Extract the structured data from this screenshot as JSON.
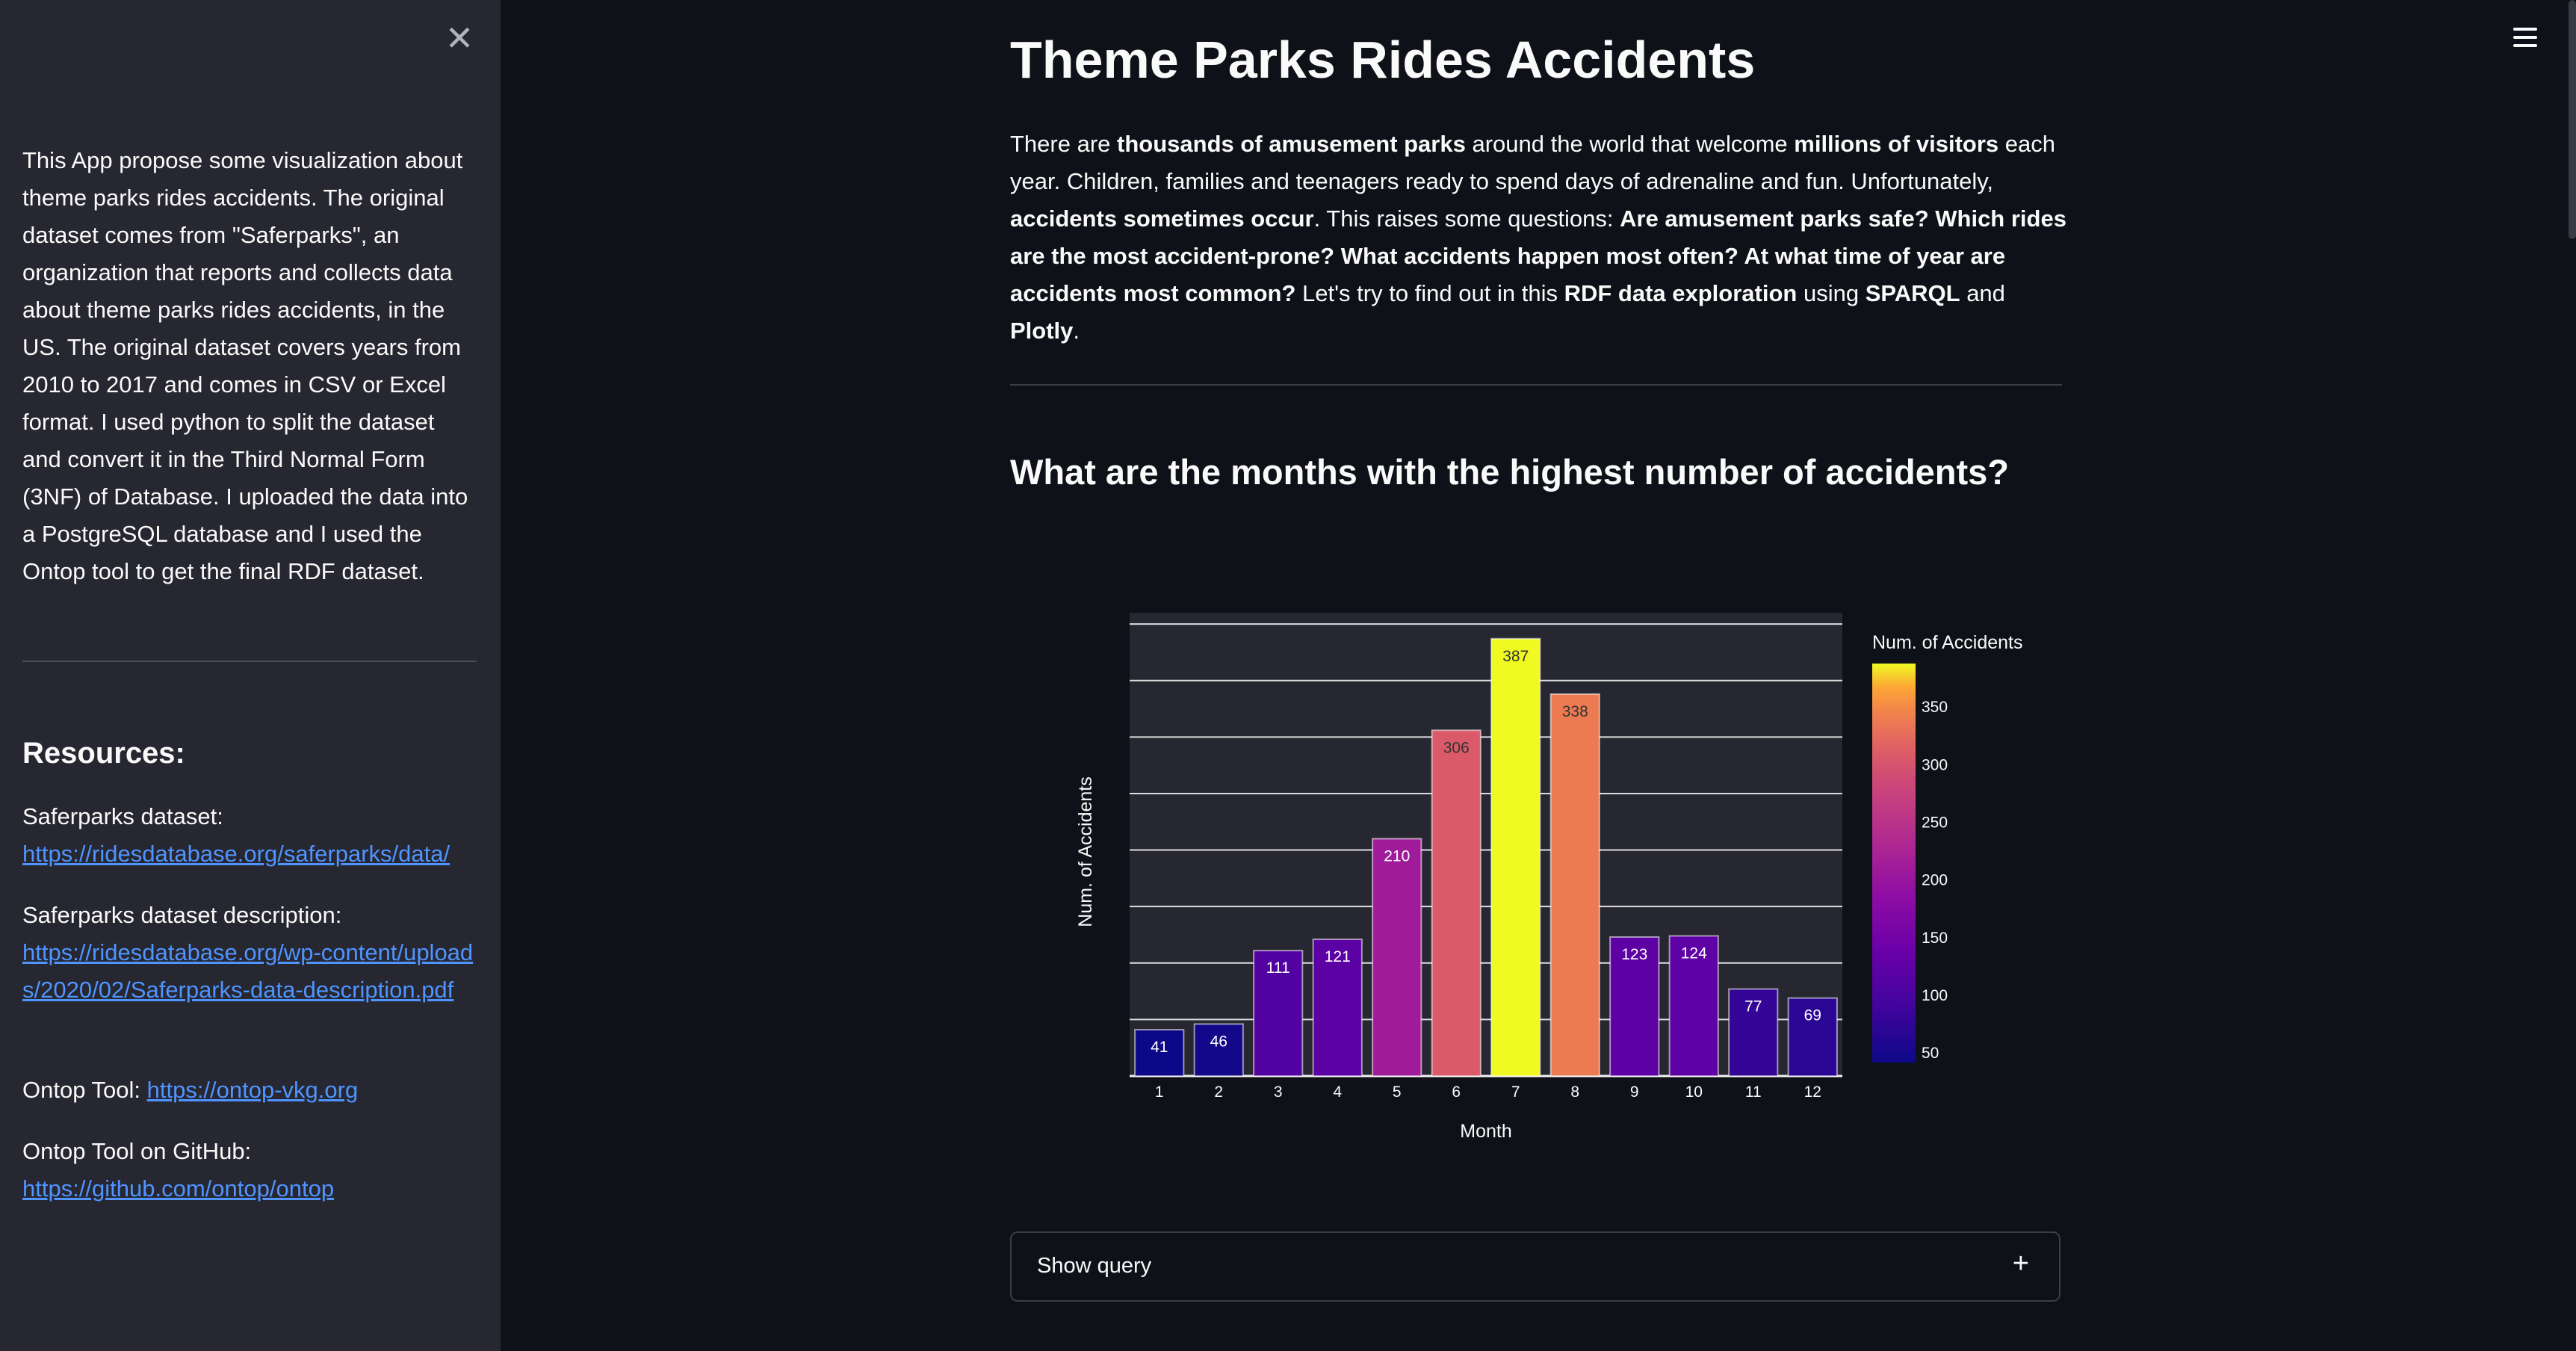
{
  "sidebar": {
    "close_glyph": "✕",
    "intro": "This App propose some visualization about theme parks rides accidents. The original dataset comes from \"Saferparks\", an organization that reports and collects data about theme parks rides accidents, in the US. The original dataset covers years from 2010 to 2017 and comes in CSV or Excel format. I used python to split the dataset and convert it in the Third Normal Form (3NF) of Database. I uploaded the data into a PostgreSQL database and I used the Ontop tool to get the final RDF dataset.",
    "resources_title": "Resources:",
    "resources": [
      {
        "label": "Saferparks dataset:",
        "link": "https://ridesdatabase.org/saferparks/data/"
      },
      {
        "label": "Saferparks dataset description:",
        "link": "https://ridesdatabase.org/wp-content/uploads/2020/02/Saferparks-data-description.pdf"
      },
      {
        "label": "Ontop Tool:",
        "link": "https://ontop-vkg.org"
      },
      {
        "label": "Ontop Tool on GitHub:",
        "link": "https://github.com/ontop/ontop"
      }
    ]
  },
  "main": {
    "title": "Theme Parks Rides Accidents",
    "intro": {
      "p1": "There are ",
      "b1": "thousands of amusement parks",
      "p2": " around the world that welcome ",
      "b2": "millions of visitors",
      "p3": " each year. Children, families and teenagers ready to spend days of adrenaline and fun. Unfortunately, ",
      "b3": "accidents sometimes occur",
      "p4": ". This raises some questions: ",
      "b4": "Are amusement parks safe? Which rides are the most accident-prone? What accidents happen most often? At what time of year are accidents most common?",
      "p5": " Let's try to find out in this ",
      "b5": "RDF data exploration",
      "p6": " using ",
      "b6": "SPARQL",
      "p7": " and ",
      "b7": "Plotly",
      "p8": "."
    },
    "subtitle": "What are the months with the highest number of accidents?",
    "expander_label": "Show query",
    "expander_icon": "+"
  },
  "chart_data": {
    "type": "bar",
    "categories": [
      "1",
      "2",
      "3",
      "4",
      "5",
      "6",
      "7",
      "8",
      "9",
      "10",
      "11",
      "12"
    ],
    "values": [
      41,
      46,
      111,
      121,
      210,
      306,
      387,
      338,
      123,
      124,
      77,
      69
    ],
    "xlabel": "Month",
    "ylabel": "Num. of Accidents",
    "ylim": [
      0,
      410
    ],
    "grid": true,
    "colorbar": {
      "title": "Num. of Accidents",
      "range": [
        41,
        387
      ],
      "ticks": [
        50,
        100,
        150,
        200,
        250,
        300,
        350
      ],
      "colorscale": "plasma"
    },
    "colors": {
      "plot_bg": "#262730",
      "grid": "#ffffff",
      "text": "#fafafa"
    }
  }
}
